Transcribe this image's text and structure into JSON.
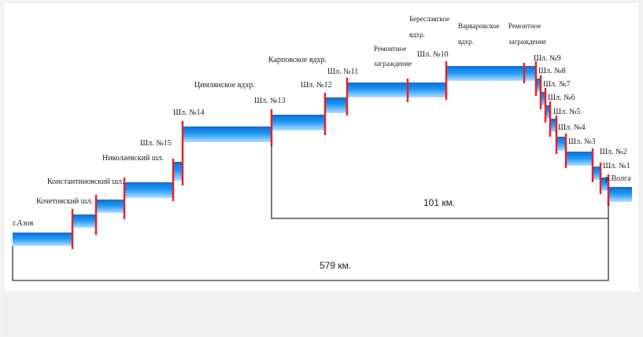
{
  "labels": {
    "azov": "г.Азов",
    "kochetov": "Кочетовский шл.",
    "konstantin": "Константиновский шл.",
    "nikolaev": "Николаевский шл.",
    "shl15": "Шл. №15",
    "shl14": "Шл. №14",
    "tsimlyansk": "Цимлянское вдхр.",
    "shl13": "Шл. №13",
    "karpovka": "Карповское вдхр.",
    "shl12": "Шл. №12",
    "shl11": "Шл. №11",
    "remont1_a": "Ремонтное",
    "remont1_b": "заграждение",
    "bereslav_a": "Береславское",
    "bereslav_b": "вдхр.",
    "shl10": "Шл. №10",
    "varvarovka_a": "Варваровское",
    "varvarovka_b": "вдхр.",
    "remont2_a": "Ремонтное",
    "remont2_b": "заграждение",
    "shl9": "Шл. №9",
    "shl8": "Шл. №8",
    "shl7": "Шл. №7",
    "shl6": "Шл. №6",
    "shl5": "Шл. №5",
    "shl4": "Шл. №4",
    "shl3": "Шл. №3",
    "shl2": "Шл. №2",
    "shl1": "Шл. №1",
    "volga": "р.Волга"
  },
  "distances": {
    "short": "101 км.",
    "total": "579 км."
  },
  "colors": {
    "water_top": "#0b7de6",
    "water_bottom": "#a9d6ff",
    "lock": "#e8202a",
    "bracket": "#333333"
  }
}
